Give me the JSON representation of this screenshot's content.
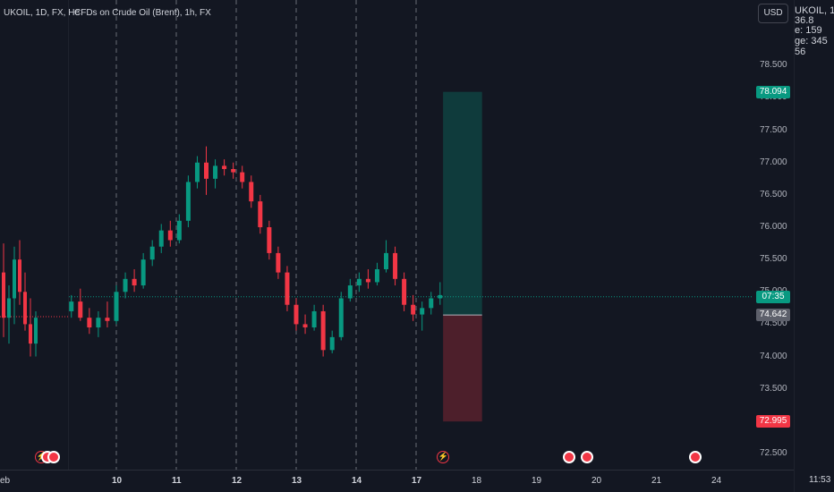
{
  "header": {
    "left_legend": "UKOIL, 1D, FX, He",
    "main_legend": "CFDs on Crude Oil (Brent), 1h, FX",
    "currency_button": "USD"
  },
  "right_panel": {
    "title": "UKOIL, 1",
    "lines": [
      "36.8",
      "e: 159",
      "ge: 345",
      "56"
    ],
    "time_label": "11:53"
  },
  "left_panel": {
    "time_label": "eb"
  },
  "chart_data": {
    "type": "candlestick",
    "title": "CFDs on Crude Oil (Brent), 1h, FX",
    "y_ticks": [
      72.5,
      73.0,
      73.5,
      74.0,
      74.5,
      75.0,
      75.5,
      76.0,
      76.5,
      77.0,
      77.5,
      78.0,
      78.5
    ],
    "y_tick_labels": [
      "72.500",
      "73.000",
      "73.500",
      "74.000",
      "74.500",
      "75.000",
      "75.500",
      "76.000",
      "76.500",
      "77.000",
      "77.500",
      "78.000",
      "78.500"
    ],
    "ylim": [
      72.25,
      79.1
    ],
    "x_ticks": [
      "10",
      "11",
      "12",
      "13",
      "14",
      "17",
      "18",
      "19",
      "20",
      "21",
      "24"
    ],
    "x_tick_days": [
      0,
      1,
      2,
      3,
      4,
      5,
      6,
      7,
      8,
      9,
      10
    ],
    "xlim": [
      -0.75,
      10.5
    ],
    "vertical_gridline_days": [
      0,
      1,
      2,
      3,
      4,
      5
    ],
    "current_price": 74.925,
    "countdown_label": "07:35",
    "position": {
      "type": "long",
      "entry": 74.642,
      "entry_label": "74.642",
      "target": 78.094,
      "target_label": "78.094",
      "stop": 72.995,
      "stop_label": "72.995",
      "start_day": 5.45,
      "end_day": 6.1
    },
    "candles": [
      {
        "d": -0.75,
        "o": 74.7,
        "h": 74.95,
        "l": 74.6,
        "c": 74.85
      },
      {
        "d": -0.6,
        "o": 74.85,
        "h": 75.05,
        "l": 74.55,
        "c": 74.6
      },
      {
        "d": -0.45,
        "o": 74.6,
        "h": 74.75,
        "l": 74.35,
        "c": 74.45
      },
      {
        "d": -0.3,
        "o": 74.45,
        "h": 74.7,
        "l": 74.3,
        "c": 74.6
      },
      {
        "d": -0.15,
        "o": 74.6,
        "h": 74.85,
        "l": 74.45,
        "c": 74.55
      },
      {
        "d": 0.0,
        "o": 74.55,
        "h": 75.1,
        "l": 74.5,
        "c": 75.0
      },
      {
        "d": 0.15,
        "o": 75.0,
        "h": 75.3,
        "l": 74.9,
        "c": 75.2
      },
      {
        "d": 0.3,
        "o": 75.2,
        "h": 75.35,
        "l": 75.0,
        "c": 75.1
      },
      {
        "d": 0.45,
        "o": 75.1,
        "h": 75.6,
        "l": 75.05,
        "c": 75.5
      },
      {
        "d": 0.6,
        "o": 75.5,
        "h": 75.8,
        "l": 75.4,
        "c": 75.7
      },
      {
        "d": 0.75,
        "o": 75.7,
        "h": 76.05,
        "l": 75.6,
        "c": 75.95
      },
      {
        "d": 0.9,
        "o": 75.95,
        "h": 76.1,
        "l": 75.7,
        "c": 75.8
      },
      {
        "d": 1.05,
        "o": 75.8,
        "h": 76.2,
        "l": 75.75,
        "c": 76.1
      },
      {
        "d": 1.2,
        "o": 76.1,
        "h": 76.8,
        "l": 76.0,
        "c": 76.7
      },
      {
        "d": 1.35,
        "o": 76.7,
        "h": 77.1,
        "l": 76.6,
        "c": 77.0
      },
      {
        "d": 1.5,
        "o": 77.0,
        "h": 77.25,
        "l": 76.5,
        "c": 76.75
      },
      {
        "d": 1.65,
        "o": 76.75,
        "h": 77.05,
        "l": 76.6,
        "c": 76.95
      },
      {
        "d": 1.8,
        "o": 76.95,
        "h": 77.05,
        "l": 76.8,
        "c": 76.9
      },
      {
        "d": 1.95,
        "o": 76.9,
        "h": 77.0,
        "l": 76.75,
        "c": 76.85
      },
      {
        "d": 2.1,
        "o": 76.85,
        "h": 76.95,
        "l": 76.6,
        "c": 76.7
      },
      {
        "d": 2.25,
        "o": 76.7,
        "h": 76.8,
        "l": 76.3,
        "c": 76.4
      },
      {
        "d": 2.4,
        "o": 76.4,
        "h": 76.5,
        "l": 75.9,
        "c": 76.0
      },
      {
        "d": 2.55,
        "o": 76.0,
        "h": 76.1,
        "l": 75.5,
        "c": 75.6
      },
      {
        "d": 2.7,
        "o": 75.6,
        "h": 75.7,
        "l": 75.2,
        "c": 75.3
      },
      {
        "d": 2.85,
        "o": 75.3,
        "h": 75.4,
        "l": 74.7,
        "c": 74.8
      },
      {
        "d": 3.0,
        "o": 74.8,
        "h": 74.9,
        "l": 74.4,
        "c": 74.5
      },
      {
        "d": 3.15,
        "o": 74.5,
        "h": 74.65,
        "l": 74.35,
        "c": 74.45
      },
      {
        "d": 3.3,
        "o": 74.45,
        "h": 74.8,
        "l": 74.4,
        "c": 74.7
      },
      {
        "d": 3.45,
        "o": 74.7,
        "h": 74.8,
        "l": 74.0,
        "c": 74.1
      },
      {
        "d": 3.6,
        "o": 74.1,
        "h": 74.4,
        "l": 74.05,
        "c": 74.3
      },
      {
        "d": 3.75,
        "o": 74.3,
        "h": 75.0,
        "l": 74.25,
        "c": 74.9
      },
      {
        "d": 3.9,
        "o": 74.9,
        "h": 75.2,
        "l": 74.85,
        "c": 75.1
      },
      {
        "d": 4.05,
        "o": 75.1,
        "h": 75.3,
        "l": 75.0,
        "c": 75.2
      },
      {
        "d": 4.2,
        "o": 75.2,
        "h": 75.35,
        "l": 75.05,
        "c": 75.15
      },
      {
        "d": 4.35,
        "o": 75.15,
        "h": 75.45,
        "l": 75.1,
        "c": 75.35
      },
      {
        "d": 4.5,
        "o": 75.35,
        "h": 75.8,
        "l": 75.3,
        "c": 75.6
      },
      {
        "d": 4.65,
        "o": 75.6,
        "h": 75.7,
        "l": 75.1,
        "c": 75.2
      },
      {
        "d": 4.8,
        "o": 75.2,
        "h": 75.3,
        "l": 74.7,
        "c": 74.8
      },
      {
        "d": 4.95,
        "o": 74.8,
        "h": 74.95,
        "l": 74.55,
        "c": 74.65
      },
      {
        "d": 5.1,
        "o": 74.65,
        "h": 74.85,
        "l": 74.4,
        "c": 74.75
      },
      {
        "d": 5.25,
        "o": 74.75,
        "h": 75.0,
        "l": 74.65,
        "c": 74.9
      },
      {
        "d": 5.4,
        "o": 74.9,
        "h": 75.15,
        "l": 74.8,
        "c": 74.95
      }
    ]
  },
  "event_icons": [
    {
      "type": "bolt",
      "day": -1.25
    },
    {
      "type": "flag",
      "day": -1.15
    },
    {
      "type": "flag",
      "day": -1.05
    },
    {
      "type": "bolt",
      "day": 5.45
    },
    {
      "type": "flag",
      "day": 7.55
    },
    {
      "type": "flag",
      "day": 7.85
    },
    {
      "type": "flag",
      "day": 9.65
    }
  ],
  "left_chart": {
    "candles": [
      {
        "i": 0,
        "o": 75.3,
        "h": 75.75,
        "l": 74.3,
        "c": 74.6
      },
      {
        "i": 1,
        "o": 74.6,
        "h": 75.1,
        "l": 74.2,
        "c": 74.9
      },
      {
        "i": 2,
        "o": 74.9,
        "h": 75.7,
        "l": 74.5,
        "c": 75.5
      },
      {
        "i": 3,
        "o": 75.5,
        "h": 75.8,
        "l": 74.8,
        "c": 75.0
      },
      {
        "i": 4,
        "o": 75.0,
        "h": 75.3,
        "l": 74.4,
        "c": 74.5
      },
      {
        "i": 5,
        "o": 74.5,
        "h": 74.9,
        "l": 74.0,
        "c": 74.2
      },
      {
        "i": 6,
        "o": 74.2,
        "h": 74.7,
        "l": 74.0,
        "c": 74.6
      }
    ]
  }
}
